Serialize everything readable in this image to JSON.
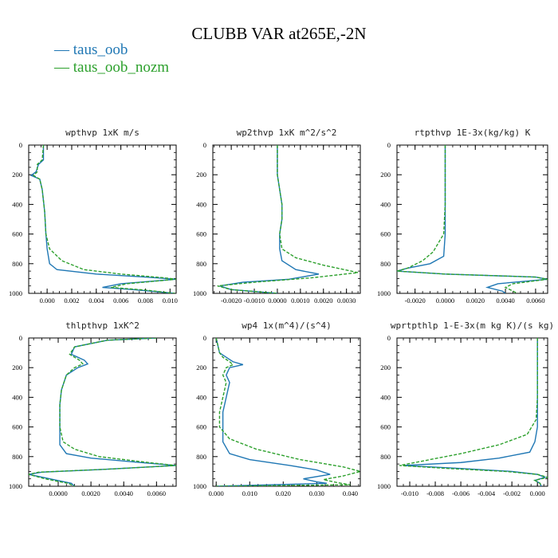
{
  "title": "CLUBB VAR at265E,-2N",
  "colors": {
    "taus_oob": "#1f77b4",
    "taus_oob_nozm": "#2ca02c"
  },
  "legend": [
    {
      "label": "taus_oob",
      "color": "#1f77b4",
      "style": "solid"
    },
    {
      "label": "taus_oob_nozm",
      "color": "#2ca02c",
      "style": "dashed"
    }
  ],
  "chart_data": [
    {
      "type": "line",
      "title": "wpthvp  1xK m/s",
      "xlim": [
        -0.0015,
        0.0105
      ],
      "ylim": [
        1000,
        0
      ],
      "xticks": [
        "0.000",
        "0.002",
        "0.004",
        "0.006",
        "0.008",
        "0.010"
      ],
      "xtick_values": [
        0,
        0.002,
        0.004,
        0.006,
        0.008,
        0.01
      ],
      "yticks": [
        0,
        200,
        400,
        600,
        800,
        1000
      ],
      "series": [
        {
          "name": "taus_oob",
          "points": [
            [
              -0.0003,
              0
            ],
            [
              -0.0003,
              100
            ],
            [
              -0.0007,
              130
            ],
            [
              -0.0009,
              180
            ],
            [
              -0.0013,
              205
            ],
            [
              -0.0006,
              230
            ],
            [
              -0.0004,
              300
            ],
            [
              -0.0002,
              450
            ],
            [
              -0.0001,
              600
            ],
            [
              0.0,
              700
            ],
            [
              0.0002,
              800
            ],
            [
              0.0008,
              840
            ],
            [
              0.004,
              870
            ],
            [
              0.008,
              890
            ],
            [
              0.0105,
              905
            ],
            [
              0.006,
              935
            ],
            [
              0.0045,
              960
            ],
            [
              0.007,
              975
            ],
            [
              0.0104,
              1000
            ]
          ]
        },
        {
          "name": "taus_oob_nozm",
          "points": [
            [
              -0.0003,
              0
            ],
            [
              -0.0004,
              100
            ],
            [
              -0.0008,
              130
            ],
            [
              -0.0008,
              180
            ],
            [
              -0.0011,
              205
            ],
            [
              -0.0006,
              230
            ],
            [
              -0.0004,
              300
            ],
            [
              -0.0002,
              450
            ],
            [
              -0.0001,
              600
            ],
            [
              0.0002,
              700
            ],
            [
              0.0012,
              780
            ],
            [
              0.003,
              840
            ],
            [
              0.006,
              870
            ],
            [
              0.0095,
              895
            ],
            [
              0.0105,
              905
            ],
            [
              0.0065,
              935
            ],
            [
              0.0052,
              960
            ],
            [
              0.008,
              978
            ],
            [
              0.0104,
              1000
            ]
          ]
        }
      ]
    },
    {
      "type": "line",
      "title": "wp2thvp  1xK m^2/s^2",
      "xlim": [
        -0.0028,
        0.0036
      ],
      "ylim": [
        1000,
        0
      ],
      "xticks": [
        "-0.0020",
        "-0.0010",
        "0.0000",
        "0.0010",
        "0.0020",
        "0.0030"
      ],
      "xtick_values": [
        -0.002,
        -0.001,
        0,
        0.001,
        0.002,
        0.003
      ],
      "yticks": [
        0,
        200,
        400,
        600,
        800,
        1000
      ],
      "series": [
        {
          "name": "taus_oob",
          "points": [
            [
              0.0,
              0
            ],
            [
              0.0,
              200
            ],
            [
              0.0002,
              400
            ],
            [
              0.0002,
              500
            ],
            [
              0.0001,
              600
            ],
            [
              0.0001,
              700
            ],
            [
              0.0002,
              780
            ],
            [
              0.0008,
              840
            ],
            [
              0.0018,
              870
            ],
            [
              0.0005,
              905
            ],
            [
              -0.0015,
              925
            ],
            [
              -0.0025,
              950
            ],
            [
              -0.002,
              975
            ],
            [
              0.0,
              1000
            ]
          ]
        },
        {
          "name": "taus_oob_nozm",
          "points": [
            [
              0.0,
              0
            ],
            [
              0.0,
              200
            ],
            [
              0.0002,
              400
            ],
            [
              0.0002,
              500
            ],
            [
              0.0001,
              600
            ],
            [
              0.0002,
              700
            ],
            [
              0.0008,
              760
            ],
            [
              0.002,
              810
            ],
            [
              0.0035,
              860
            ],
            [
              0.0015,
              895
            ],
            [
              -0.001,
              925
            ],
            [
              -0.0026,
              950
            ],
            [
              -0.002,
              975
            ],
            [
              0.0,
              1000
            ]
          ]
        }
      ]
    },
    {
      "type": "line",
      "title": "rtpthvp  1E-3x(kg/kg) K",
      "xlim": [
        -0.0032,
        0.0068
      ],
      "ylim": [
        1000,
        0
      ],
      "xticks": [
        "-0.0020",
        "0.0000",
        "0.0020",
        "0.0040",
        "0.0060"
      ],
      "xtick_values": [
        -0.002,
        0,
        0.002,
        0.004,
        0.006
      ],
      "yticks": [
        0,
        200,
        400,
        600,
        800,
        1000
      ],
      "series": [
        {
          "name": "taus_oob",
          "points": [
            [
              0.0,
              0
            ],
            [
              0.0,
              200
            ],
            [
              0.0,
              400
            ],
            [
              0.0,
              600
            ],
            [
              -0.0001,
              750
            ],
            [
              -0.001,
              800
            ],
            [
              -0.0025,
              830
            ],
            [
              -0.0032,
              850
            ],
            [
              0.0,
              870
            ],
            [
              0.006,
              890
            ],
            [
              0.0068,
              905
            ],
            [
              0.0035,
              935
            ],
            [
              0.0028,
              960
            ],
            [
              0.0038,
              985
            ],
            [
              0.004,
              1000
            ]
          ]
        },
        {
          "name": "taus_oob_nozm",
          "points": [
            [
              0.0,
              0
            ],
            [
              0.0,
              200
            ],
            [
              0.0,
              400
            ],
            [
              -0.0001,
              600
            ],
            [
              -0.0008,
              720
            ],
            [
              -0.0015,
              780
            ],
            [
              -0.0025,
              830
            ],
            [
              -0.0032,
              850
            ],
            [
              0.0,
              870
            ],
            [
              0.006,
              890
            ],
            [
              0.0068,
              905
            ],
            [
              0.0045,
              935
            ],
            [
              0.004,
              960
            ],
            [
              0.0045,
              985
            ],
            [
              0.0048,
              1000
            ]
          ]
        }
      ]
    },
    {
      "type": "line",
      "title": "thlpthvp   1xK^2",
      "xlim": [
        -0.0018,
        0.0072
      ],
      "ylim": [
        1000,
        0
      ],
      "xticks": [
        "0.0000",
        "0.0020",
        "0.0040",
        "0.0060"
      ],
      "xtick_values": [
        0,
        0.002,
        0.004,
        0.006
      ],
      "yticks": [
        0,
        200,
        400,
        600,
        800,
        1000
      ],
      "series": [
        {
          "name": "taus_oob",
          "points": [
            [
              0.006,
              0
            ],
            [
              0.003,
              15
            ],
            [
              0.001,
              60
            ],
            [
              0.0008,
              110
            ],
            [
              0.0012,
              130
            ],
            [
              0.0016,
              150
            ],
            [
              0.0018,
              175
            ],
            [
              0.0012,
              200
            ],
            [
              0.0005,
              250
            ],
            [
              0.0002,
              350
            ],
            [
              0.0001,
              450
            ],
            [
              0.0001,
              600
            ],
            [
              0.0001,
              720
            ],
            [
              0.0005,
              780
            ],
            [
              0.002,
              810
            ],
            [
              0.005,
              840
            ],
            [
              0.0072,
              860
            ],
            [
              0.003,
              885
            ],
            [
              -0.001,
              905
            ],
            [
              -0.0018,
              920
            ],
            [
              -0.0005,
              950
            ],
            [
              0.0008,
              980
            ],
            [
              0.001,
              1000
            ]
          ]
        },
        {
          "name": "taus_oob_nozm",
          "points": [
            [
              0.006,
              0
            ],
            [
              0.003,
              15
            ],
            [
              0.001,
              60
            ],
            [
              0.0007,
              110
            ],
            [
              0.001,
              130
            ],
            [
              0.0013,
              150
            ],
            [
              0.0015,
              175
            ],
            [
              0.001,
              200
            ],
            [
              0.0005,
              250
            ],
            [
              0.0002,
              350
            ],
            [
              0.0001,
              450
            ],
            [
              0.0001,
              600
            ],
            [
              0.0003,
              700
            ],
            [
              0.001,
              750
            ],
            [
              0.0025,
              800
            ],
            [
              0.0055,
              840
            ],
            [
              0.0072,
              860
            ],
            [
              0.003,
              885
            ],
            [
              -0.0012,
              905
            ],
            [
              -0.0018,
              920
            ],
            [
              -0.0008,
              950
            ],
            [
              0.0006,
              980
            ],
            [
              0.001,
              1000
            ]
          ]
        }
      ]
    },
    {
      "type": "line",
      "title": "wp4  1x(m^4)/(s^4)",
      "xlim": [
        -0.001,
        0.043
      ],
      "ylim": [
        1000,
        0
      ],
      "xticks": [
        "0.000",
        "0.010",
        "0.020",
        "0.030",
        "0.040"
      ],
      "xtick_values": [
        0,
        0.01,
        0.02,
        0.03,
        0.04
      ],
      "yticks": [
        0,
        200,
        400,
        600,
        800,
        1000
      ],
      "series": [
        {
          "name": "taus_oob",
          "points": [
            [
              0.0,
              0
            ],
            [
              0.001,
              100
            ],
            [
              0.003,
              130
            ],
            [
              0.005,
              160
            ],
            [
              0.008,
              180
            ],
            [
              0.004,
              200
            ],
            [
              0.003,
              250
            ],
            [
              0.004,
              300
            ],
            [
              0.003,
              400
            ],
            [
              0.002,
              500
            ],
            [
              0.002,
              600
            ],
            [
              0.002,
              700
            ],
            [
              0.004,
              780
            ],
            [
              0.01,
              820
            ],
            [
              0.022,
              860
            ],
            [
              0.03,
              890
            ],
            [
              0.034,
              920
            ],
            [
              0.026,
              950
            ],
            [
              0.03,
              970
            ],
            [
              0.033,
              980
            ],
            [
              0.0,
              1000
            ]
          ]
        },
        {
          "name": "taus_oob_nozm",
          "points": [
            [
              0.0,
              0
            ],
            [
              0.001,
              100
            ],
            [
              0.002,
              130
            ],
            [
              0.004,
              160
            ],
            [
              0.005,
              180
            ],
            [
              0.003,
              200
            ],
            [
              0.002,
              250
            ],
            [
              0.003,
              300
            ],
            [
              0.002,
              400
            ],
            [
              0.001,
              500
            ],
            [
              0.001,
              600
            ],
            [
              0.004,
              680
            ],
            [
              0.012,
              750
            ],
            [
              0.025,
              820
            ],
            [
              0.038,
              870
            ],
            [
              0.043,
              900
            ],
            [
              0.038,
              930
            ],
            [
              0.032,
              955
            ],
            [
              0.036,
              975
            ],
            [
              0.04,
              990
            ],
            [
              0.0,
              1000
            ]
          ]
        }
      ]
    },
    {
      "type": "line",
      "title": "wprtpthlp  1-E-3x(m kg K)/(s kg)",
      "xlim": [
        -0.011,
        0.0008
      ],
      "ylim": [
        1000,
        0
      ],
      "xticks": [
        "-0.010",
        "-0.008",
        "-0.006",
        "-0.004",
        "-0.002",
        "0.000"
      ],
      "xtick_values": [
        -0.01,
        -0.008,
        -0.006,
        -0.004,
        -0.002,
        0
      ],
      "yticks": [
        0,
        200,
        400,
        600,
        800,
        1000
      ],
      "series": [
        {
          "name": "taus_oob",
          "points": [
            [
              0.0,
              0
            ],
            [
              0.0,
              200
            ],
            [
              0.0,
              400
            ],
            [
              0.0,
              600
            ],
            [
              -0.0002,
              700
            ],
            [
              -0.0006,
              770
            ],
            [
              -0.003,
              810
            ],
            [
              -0.006,
              840
            ],
            [
              -0.0105,
              860
            ],
            [
              -0.006,
              880
            ],
            [
              -0.002,
              900
            ],
            [
              0.0,
              920
            ],
            [
              0.0006,
              940
            ],
            [
              -0.0002,
              960
            ],
            [
              0.0002,
              980
            ],
            [
              0.0003,
              1000
            ]
          ]
        },
        {
          "name": "taus_oob_nozm",
          "points": [
            [
              0.0,
              0
            ],
            [
              0.0,
              200
            ],
            [
              0.0,
              400
            ],
            [
              -0.0001,
              550
            ],
            [
              -0.0008,
              650
            ],
            [
              -0.003,
              720
            ],
            [
              -0.006,
              780
            ],
            [
              -0.009,
              830
            ],
            [
              -0.0108,
              860
            ],
            [
              -0.007,
              880
            ],
            [
              -0.0025,
              900
            ],
            [
              0.0,
              920
            ],
            [
              0.0008,
              940
            ],
            [
              -0.0002,
              960
            ],
            [
              0.0002,
              980
            ],
            [
              0.0003,
              1000
            ]
          ]
        }
      ]
    }
  ]
}
